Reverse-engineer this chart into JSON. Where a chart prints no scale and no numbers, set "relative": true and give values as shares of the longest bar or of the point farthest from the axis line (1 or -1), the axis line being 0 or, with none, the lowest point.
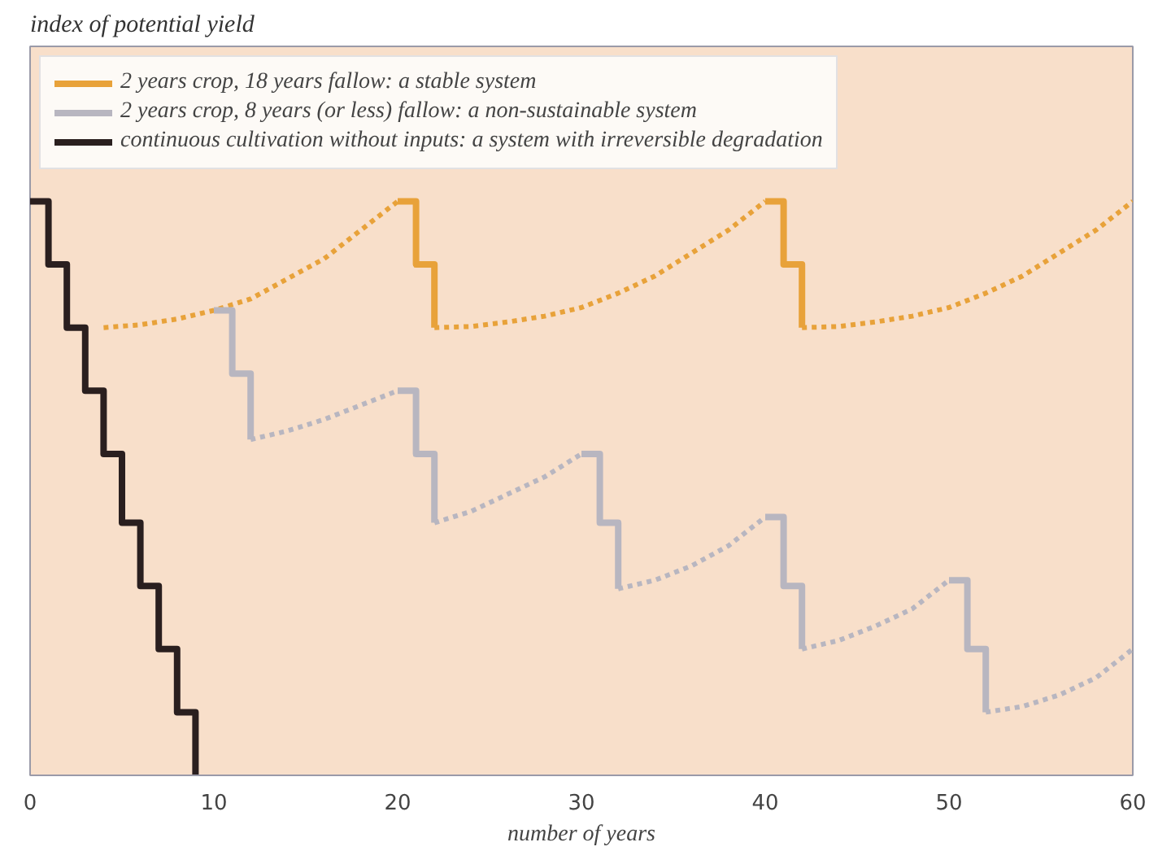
{
  "chart_data": {
    "type": "line",
    "title": "index of potential yield",
    "xlabel": "number of years",
    "relative": true,
    "xlim": [
      0,
      60
    ],
    "xticks": [
      0,
      10,
      20,
      30,
      40,
      50,
      60
    ],
    "grid": false,
    "legend": "top",
    "marker": "none",
    "series": [
      {
        "name": "2 years crop, 18 years fallow: a stable system",
        "type": "step",
        "line_style": "solid",
        "color": "#e8a23a",
        "x": [
          20,
          21,
          22
        ],
        "values": [
          1,
          0.89,
          0.78
        ]
      },
      {
        "type": "step",
        "line_style": "solid",
        "color": "#e8a23a",
        "x": [
          40,
          41,
          42
        ],
        "values": [
          1,
          0.89,
          0.78
        ]
      },
      {
        "line_style": "dotted",
        "color": "#e8a23a",
        "x": [
          4,
          6,
          8,
          10,
          12,
          14,
          16,
          18,
          20
        ],
        "values": [
          0.78,
          0.785,
          0.795,
          0.81,
          0.83,
          0.865,
          0.9,
          0.95,
          1
        ]
      },
      {
        "line_style": "dotted",
        "color": "#e8a23a",
        "x": [
          22,
          24,
          26,
          28,
          30,
          32,
          34,
          36,
          38,
          40
        ],
        "values": [
          0.78,
          0.782,
          0.79,
          0.8,
          0.815,
          0.84,
          0.87,
          0.91,
          0.95,
          1
        ]
      },
      {
        "line_style": "dotted",
        "color": "#e8a23a",
        "x": [
          42,
          44,
          46,
          48,
          50,
          52,
          54,
          56,
          58,
          60
        ],
        "values": [
          0.78,
          0.782,
          0.79,
          0.8,
          0.815,
          0.84,
          0.87,
          0.91,
          0.95,
          1
        ]
      },
      {
        "name": "2 years crop, 8 years (or less) fallow: a non-sustainable system",
        "type": "step",
        "line_style": "solid",
        "color": "#b8b6c0",
        "x": [
          10,
          11,
          12
        ],
        "values": [
          0.81,
          0.7,
          0.585
        ]
      },
      {
        "type": "step",
        "line_style": "solid",
        "color": "#b8b6c0",
        "x": [
          20,
          21,
          22
        ],
        "values": [
          0.67,
          0.56,
          0.44
        ]
      },
      {
        "type": "step",
        "line_style": "solid",
        "color": "#b8b6c0",
        "x": [
          30,
          31,
          32
        ],
        "values": [
          0.56,
          0.44,
          0.325
        ]
      },
      {
        "type": "step",
        "line_style": "solid",
        "color": "#b8b6c0",
        "x": [
          40,
          41,
          42
        ],
        "values": [
          0.45,
          0.33,
          0.22
        ]
      },
      {
        "type": "step",
        "line_style": "solid",
        "color": "#b8b6c0",
        "x": [
          50,
          51,
          52
        ],
        "values": [
          0.34,
          0.22,
          0.11
        ]
      },
      {
        "line_style": "dotted",
        "color": "#b8b6c0",
        "x": [
          12,
          14,
          16,
          18,
          20
        ],
        "values": [
          0.585,
          0.6,
          0.62,
          0.645,
          0.67
        ]
      },
      {
        "line_style": "dotted",
        "color": "#b8b6c0",
        "x": [
          22,
          24,
          26,
          28,
          30
        ],
        "values": [
          0.44,
          0.46,
          0.49,
          0.52,
          0.56
        ]
      },
      {
        "line_style": "dotted",
        "color": "#b8b6c0",
        "x": [
          32,
          34,
          36,
          38,
          40
        ],
        "values": [
          0.325,
          0.34,
          0.365,
          0.4,
          0.45
        ]
      },
      {
        "line_style": "dotted",
        "color": "#b8b6c0",
        "x": [
          42,
          44,
          46,
          48,
          50
        ],
        "values": [
          0.22,
          0.235,
          0.26,
          0.29,
          0.34
        ]
      },
      {
        "line_style": "dotted",
        "color": "#b8b6c0",
        "x": [
          52,
          54,
          56,
          58,
          60
        ],
        "values": [
          0.11,
          0.12,
          0.14,
          0.17,
          0.22
        ]
      },
      {
        "name": "continuous cultivation without inputs: a system with irreversible degradation",
        "type": "step",
        "line_style": "solid",
        "color": "#2a1f1f",
        "x": [
          0,
          1,
          2,
          3,
          4,
          5,
          6,
          7,
          8,
          9
        ],
        "values": [
          1,
          0.89,
          0.78,
          0.67,
          0.56,
          0.44,
          0.33,
          0.22,
          0.11,
          0
        ]
      }
    ]
  }
}
